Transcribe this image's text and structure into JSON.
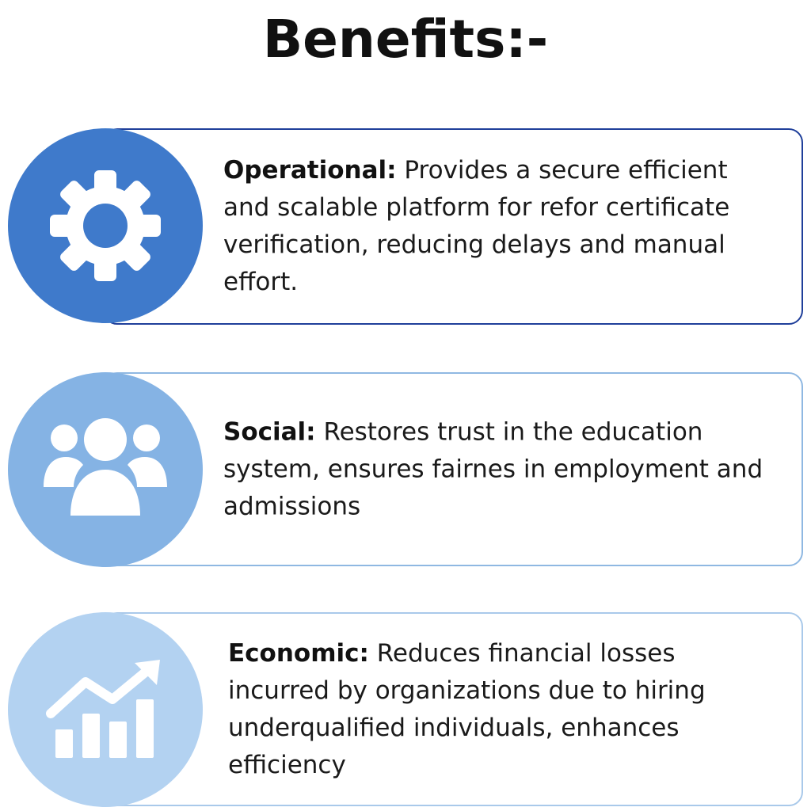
{
  "title": "Benefits:-",
  "cards": [
    {
      "icon": "gear-icon",
      "heading": "Operational:",
      "body": "Provides a secure efficient and scalable platform for refor certificate verification, reducing delays and manual effort.",
      "circle_color": "#3f7acb",
      "border_color": "#1f3f9a"
    },
    {
      "icon": "users-icon",
      "heading": "Social:",
      "body": "Restores trust in the education system, ensures fairnes in employment and admissions",
      "circle_color": "#85b3e4",
      "border_color": "#8fb8e2"
    },
    {
      "icon": "growth-chart-icon",
      "heading": "Economic:",
      "body": "Reduces financial losses incurred by organizations due to hiring underqualified individuals, enhances efficiency",
      "circle_color": "#b3d2f1",
      "border_color": "#a9c9ea"
    }
  ]
}
